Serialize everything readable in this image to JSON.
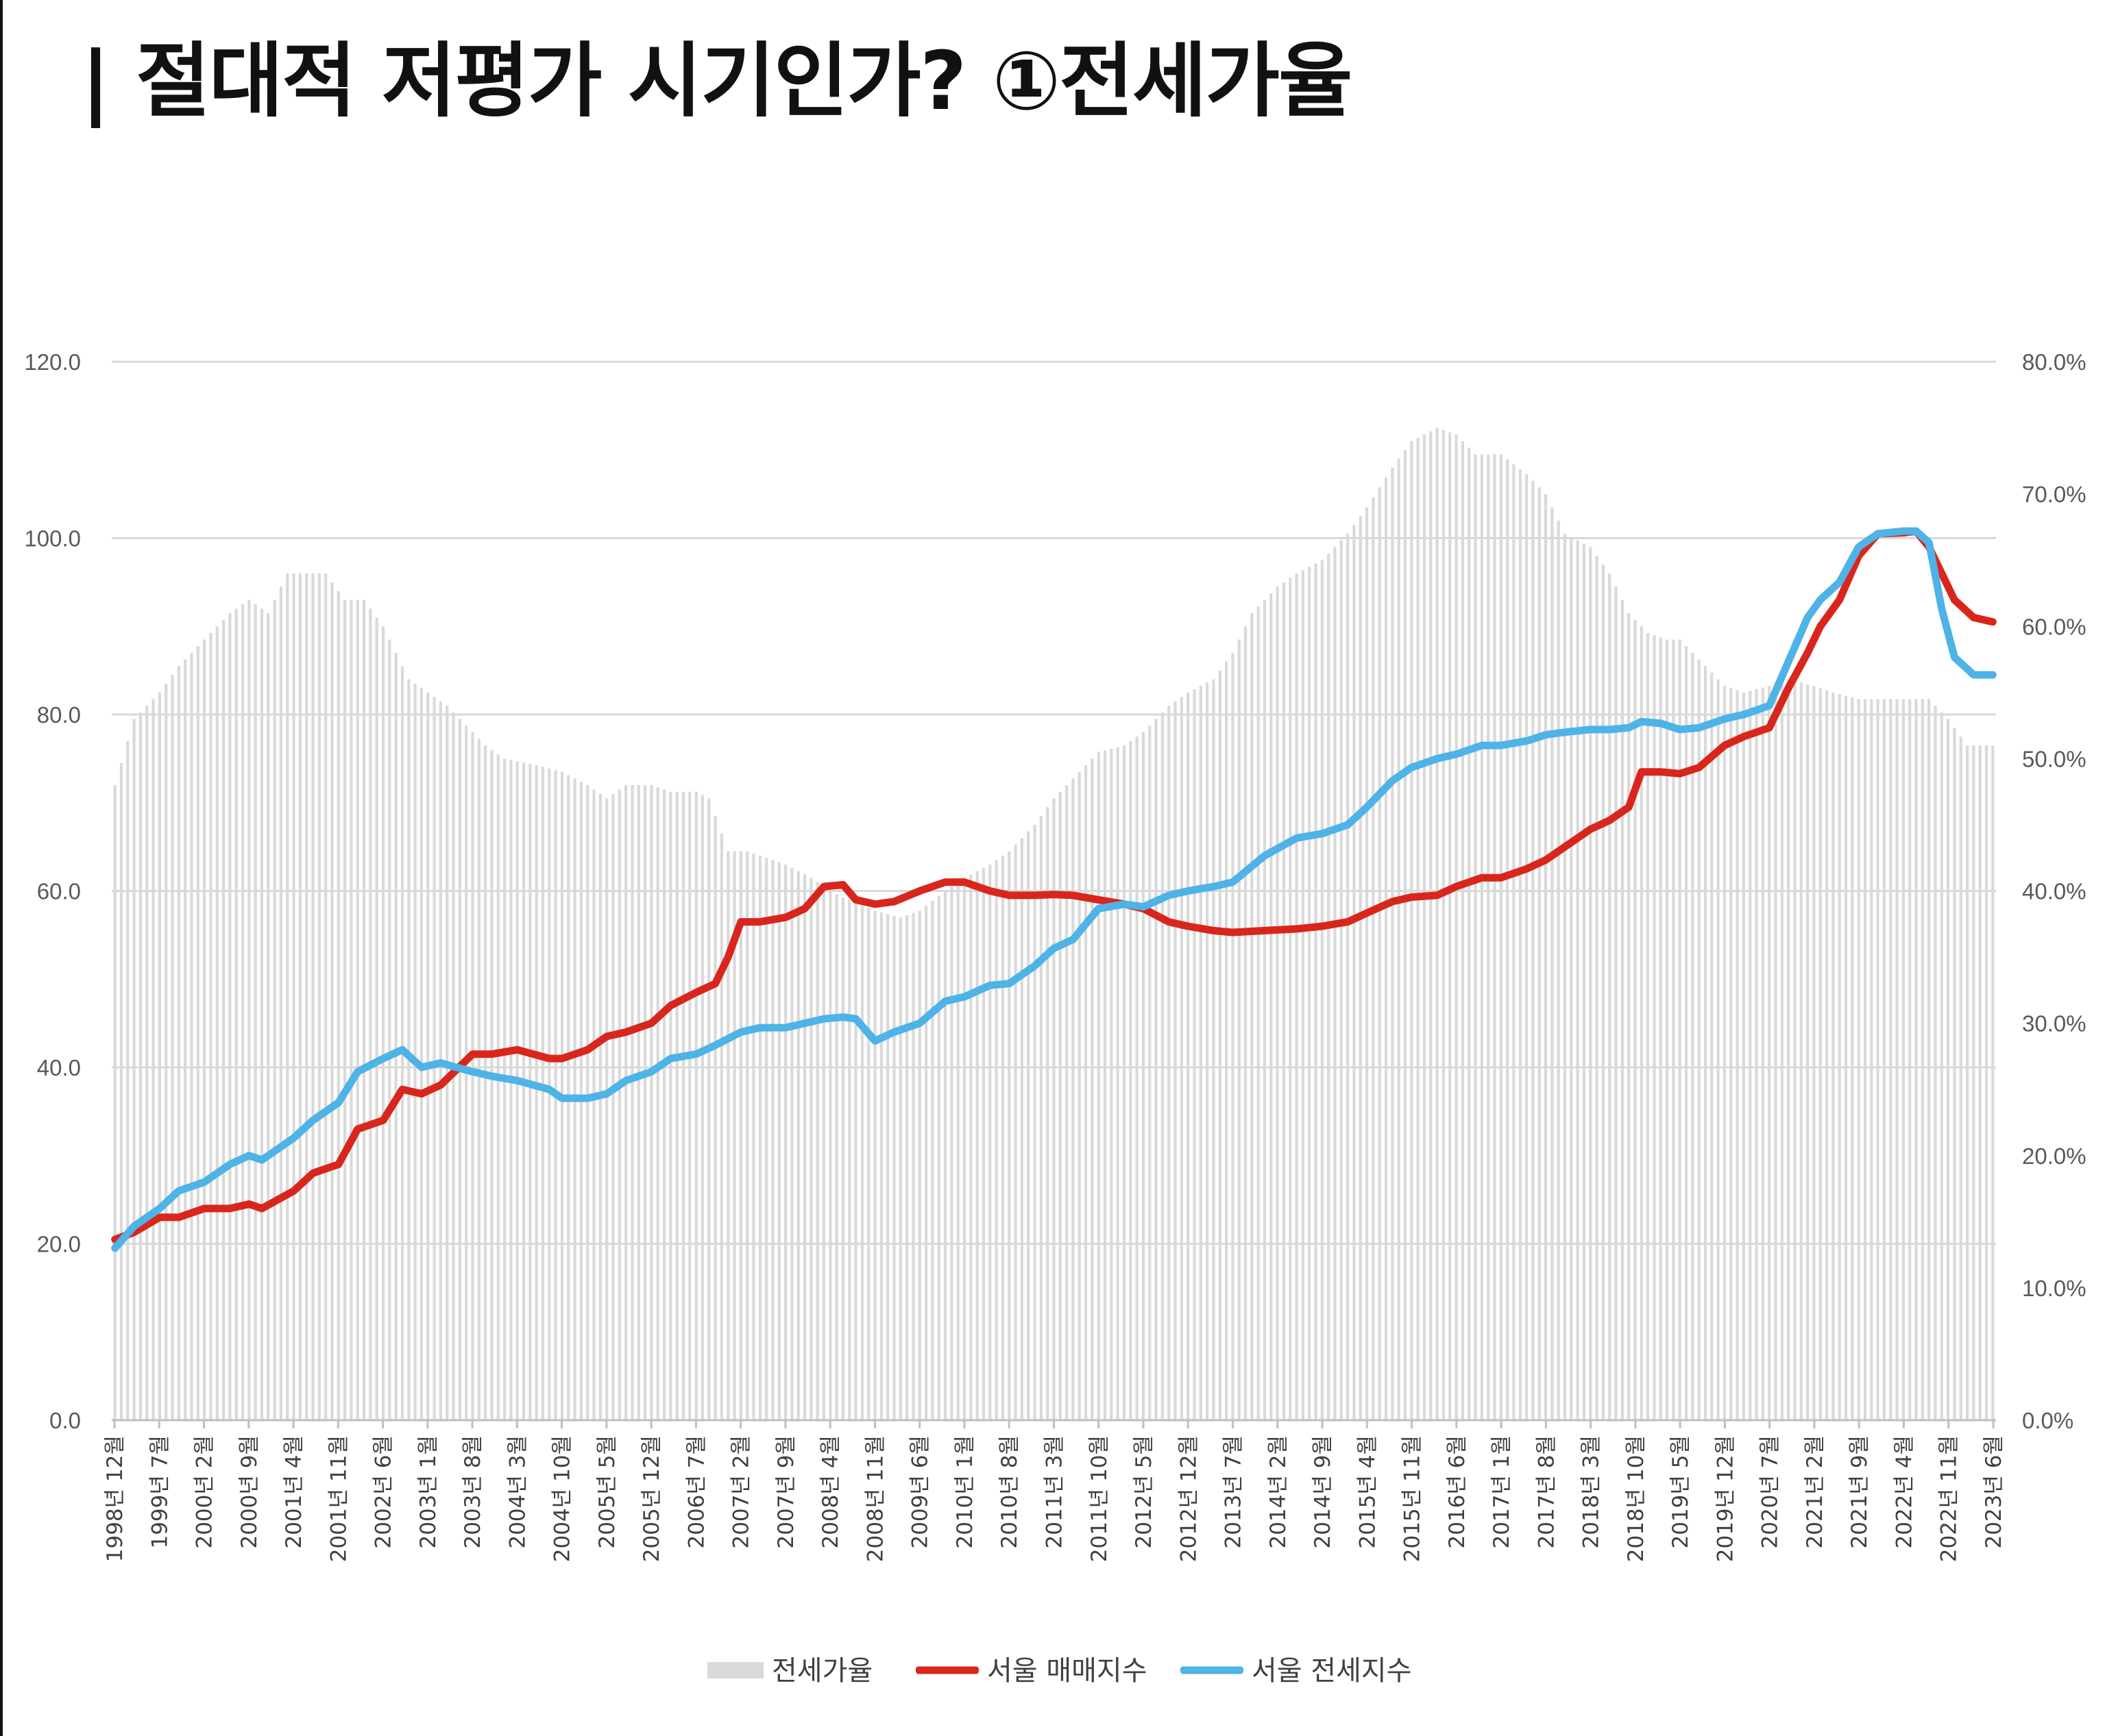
{
  "title": "| 절대적 저평가 시기인가? ①전세가율",
  "chart_data": {
    "type": "bar+line",
    "title": "",
    "y_left": {
      "lim": [
        0,
        120
      ],
      "ticks": [
        "0.0",
        "20.0",
        "40.0",
        "60.0",
        "80.0",
        "100.0",
        "120.0"
      ]
    },
    "y_right": {
      "lim": [
        0,
        80
      ],
      "ticks": [
        "0.0%",
        "10.0%",
        "20.0%",
        "30.0%",
        "40.0%",
        "50.0%",
        "60.0%",
        "70.0%",
        "80.0%"
      ]
    },
    "x_start": "1998-12",
    "x_end": "2023-06",
    "x_ticks": [
      "1998년 12월",
      "1999년 7월",
      "2000년 2월",
      "2000년 9월",
      "2001년 4월",
      "2001년 11월",
      "2002년 6월",
      "2003년 1월",
      "2003년 8월",
      "2004년 3월",
      "2004년 10월",
      "2005년 5월",
      "2005년 12월",
      "2006년 7월",
      "2007년 2월",
      "2007년 9월",
      "2008년 4월",
      "2008년 11월",
      "2009년 6월",
      "2010년 1월",
      "2010년 8월",
      "2011년 3월",
      "2011년 10월",
      "2012년 5월",
      "2012년 12월",
      "2013년 7월",
      "2014년 2월",
      "2014년 9월",
      "2015년 4월",
      "2015년 11월",
      "2016년 6월",
      "2017년 1월",
      "2017년 8월",
      "2018년 3월",
      "2018년 10월",
      "2019년 5월",
      "2019년 12월",
      "2020년 7월",
      "2021년 2월",
      "2021년 9월",
      "2022년 4월",
      "2022년 11월",
      "2023년 6월"
    ],
    "series": [
      {
        "name": "전세가율",
        "type": "bar",
        "axis": "right",
        "color": "#d9d9d9",
        "points": [
          [
            "1998-12",
            48
          ],
          [
            "1999-03",
            53
          ],
          [
            "1999-07",
            55
          ],
          [
            "1999-10",
            57
          ],
          [
            "2000-02",
            59
          ],
          [
            "2000-06",
            61
          ],
          [
            "2000-09",
            62
          ],
          [
            "2000-12",
            61
          ],
          [
            "2001-03",
            64
          ],
          [
            "2001-06",
            64
          ],
          [
            "2001-09",
            64
          ],
          [
            "2001-12",
            62
          ],
          [
            "2002-03",
            62
          ],
          [
            "2002-06",
            60
          ],
          [
            "2002-08",
            58
          ],
          [
            "2002-10",
            56
          ],
          [
            "2003-01",
            55
          ],
          [
            "2003-04",
            54
          ],
          [
            "2003-08",
            52
          ],
          [
            "2003-10",
            51
          ],
          [
            "2004-01",
            50
          ],
          [
            "2004-06",
            49.5
          ],
          [
            "2004-10",
            49
          ],
          [
            "2005-02",
            48
          ],
          [
            "2005-05",
            47
          ],
          [
            "2005-08",
            48
          ],
          [
            "2005-12",
            48
          ],
          [
            "2006-03",
            47.5
          ],
          [
            "2006-07",
            47.5
          ],
          [
            "2006-09",
            47
          ],
          [
            "2006-12",
            43
          ],
          [
            "2007-03",
            43
          ],
          [
            "2007-09",
            42
          ],
          [
            "2008-01",
            41
          ],
          [
            "2008-04",
            40
          ],
          [
            "2008-06",
            39.5
          ],
          [
            "2008-11",
            38.5
          ],
          [
            "2009-03",
            38
          ],
          [
            "2009-06",
            38.5
          ],
          [
            "2009-10",
            40
          ],
          [
            "2010-01",
            41
          ],
          [
            "2010-05",
            42
          ],
          [
            "2010-08",
            43
          ],
          [
            "2010-12",
            45
          ],
          [
            "2011-03",
            47
          ],
          [
            "2011-07",
            49
          ],
          [
            "2011-10",
            50.5
          ],
          [
            "2012-02",
            51
          ],
          [
            "2012-05",
            52
          ],
          [
            "2012-09",
            54
          ],
          [
            "2012-12",
            55
          ],
          [
            "2013-04",
            56
          ],
          [
            "2013-07",
            58
          ],
          [
            "2013-10",
            61
          ],
          [
            "2014-02",
            63
          ],
          [
            "2014-05",
            64
          ],
          [
            "2014-09",
            65
          ],
          [
            "2015-01",
            67
          ],
          [
            "2015-04",
            69
          ],
          [
            "2015-08",
            72
          ],
          [
            "2015-11",
            74
          ],
          [
            "2016-03",
            75
          ],
          [
            "2016-06",
            74.5
          ],
          [
            "2016-09",
            73
          ],
          [
            "2017-01",
            73
          ],
          [
            "2017-05",
            71.5
          ],
          [
            "2017-08",
            70
          ],
          [
            "2017-11",
            67
          ],
          [
            "2018-03",
            66
          ],
          [
            "2018-06",
            64
          ],
          [
            "2018-09",
            61
          ],
          [
            "2018-12",
            59.5
          ],
          [
            "2019-03",
            59
          ],
          [
            "2019-05",
            59
          ],
          [
            "2019-09",
            57
          ],
          [
            "2019-12",
            55.5
          ],
          [
            "2020-03",
            55
          ],
          [
            "2020-07",
            55.5
          ],
          [
            "2020-10",
            56
          ],
          [
            "2021-02",
            55.5
          ],
          [
            "2021-05",
            55
          ],
          [
            "2021-09",
            54.5
          ],
          [
            "2021-12",
            54.5
          ],
          [
            "2022-04",
            54.5
          ],
          [
            "2022-08",
            54.5
          ],
          [
            "2022-11",
            53
          ],
          [
            "2023-02",
            51
          ],
          [
            "2023-06",
            51
          ]
        ]
      },
      {
        "name": "서울 매매지수",
        "type": "line",
        "axis": "left",
        "color": "#d9261c",
        "points": [
          [
            "1998-12",
            20.5
          ],
          [
            "1999-03",
            21.3
          ],
          [
            "1999-07",
            23
          ],
          [
            "1999-10",
            23
          ],
          [
            "2000-02",
            24
          ],
          [
            "2000-06",
            24
          ],
          [
            "2000-09",
            24.5
          ],
          [
            "2000-11",
            24
          ],
          [
            "2001-04",
            26
          ],
          [
            "2001-07",
            28
          ],
          [
            "2001-11",
            29
          ],
          [
            "2002-02",
            33
          ],
          [
            "2002-06",
            34
          ],
          [
            "2002-09",
            37.5
          ],
          [
            "2002-12",
            37
          ],
          [
            "2003-03",
            38
          ],
          [
            "2003-08",
            41.5
          ],
          [
            "2003-11",
            41.5
          ],
          [
            "2004-03",
            42
          ],
          [
            "2004-08",
            41
          ],
          [
            "2004-10",
            41
          ],
          [
            "2005-02",
            42
          ],
          [
            "2005-05",
            43.5
          ],
          [
            "2005-08",
            44
          ],
          [
            "2005-12",
            45
          ],
          [
            "2006-03",
            47
          ],
          [
            "2006-07",
            48.5
          ],
          [
            "2006-10",
            49.5
          ],
          [
            "2006-12",
            52.5
          ],
          [
            "2007-02",
            56.5
          ],
          [
            "2007-05",
            56.5
          ],
          [
            "2007-09",
            57
          ],
          [
            "2007-12",
            58
          ],
          [
            "2008-03",
            60.5
          ],
          [
            "2008-06",
            60.7
          ],
          [
            "2008-08",
            59
          ],
          [
            "2008-11",
            58.5
          ],
          [
            "2009-02",
            58.8
          ],
          [
            "2009-06",
            60
          ],
          [
            "2009-10",
            61
          ],
          [
            "2010-01",
            61
          ],
          [
            "2010-05",
            60
          ],
          [
            "2010-08",
            59.5
          ],
          [
            "2010-12",
            59.5
          ],
          [
            "2011-03",
            59.6
          ],
          [
            "2011-06",
            59.5
          ],
          [
            "2011-10",
            59
          ],
          [
            "2012-02",
            58.5
          ],
          [
            "2012-05",
            58
          ],
          [
            "2012-09",
            56.5
          ],
          [
            "2012-12",
            56
          ],
          [
            "2013-04",
            55.5
          ],
          [
            "2013-07",
            55.3
          ],
          [
            "2013-12",
            55.5
          ],
          [
            "2014-05",
            55.7
          ],
          [
            "2014-09",
            56
          ],
          [
            "2015-01",
            56.5
          ],
          [
            "2015-04",
            57.5
          ],
          [
            "2015-08",
            58.8
          ],
          [
            "2015-11",
            59.3
          ],
          [
            "2016-03",
            59.5
          ],
          [
            "2016-06",
            60.5
          ],
          [
            "2016-10",
            61.5
          ],
          [
            "2017-01",
            61.5
          ],
          [
            "2017-05",
            62.5
          ],
          [
            "2017-08",
            63.5
          ],
          [
            "2017-11",
            65
          ],
          [
            "2018-03",
            67
          ],
          [
            "2018-06",
            68
          ],
          [
            "2018-09",
            69.5
          ],
          [
            "2018-11",
            73.5
          ],
          [
            "2019-02",
            73.5
          ],
          [
            "2019-05",
            73.3
          ],
          [
            "2019-08",
            74
          ],
          [
            "2019-12",
            76.5
          ],
          [
            "2020-03",
            77.5
          ],
          [
            "2020-07",
            78.5
          ],
          [
            "2020-10",
            83
          ],
          [
            "2021-01",
            87
          ],
          [
            "2021-03",
            90
          ],
          [
            "2021-06",
            93
          ],
          [
            "2021-09",
            98
          ],
          [
            "2021-12",
            100.5
          ],
          [
            "2022-04",
            100.6
          ],
          [
            "2022-06",
            100.8
          ],
          [
            "2022-08",
            99
          ],
          [
            "2022-10",
            96
          ],
          [
            "2022-12",
            93
          ],
          [
            "2023-03",
            91
          ],
          [
            "2023-06",
            90.5
          ]
        ]
      },
      {
        "name": "서울 전세지수",
        "type": "line",
        "axis": "left",
        "color": "#4eb3e6",
        "points": [
          [
            "1998-12",
            19.5
          ],
          [
            "1999-03",
            22
          ],
          [
            "1999-07",
            24
          ],
          [
            "1999-10",
            26
          ],
          [
            "2000-02",
            27
          ],
          [
            "2000-06",
            29
          ],
          [
            "2000-09",
            30
          ],
          [
            "2000-11",
            29.5
          ],
          [
            "2001-04",
            32
          ],
          [
            "2001-07",
            34
          ],
          [
            "2001-11",
            36
          ],
          [
            "2002-02",
            39.5
          ],
          [
            "2002-06",
            41
          ],
          [
            "2002-09",
            42
          ],
          [
            "2002-12",
            40
          ],
          [
            "2003-03",
            40.5
          ],
          [
            "2003-08",
            39.5
          ],
          [
            "2003-11",
            39
          ],
          [
            "2004-03",
            38.5
          ],
          [
            "2004-08",
            37.5
          ],
          [
            "2004-10",
            36.5
          ],
          [
            "2005-02",
            36.5
          ],
          [
            "2005-05",
            37
          ],
          [
            "2005-08",
            38.5
          ],
          [
            "2005-12",
            39.5
          ],
          [
            "2006-03",
            41
          ],
          [
            "2006-07",
            41.5
          ],
          [
            "2006-10",
            42.5
          ],
          [
            "2007-02",
            44
          ],
          [
            "2007-05",
            44.5
          ],
          [
            "2007-09",
            44.5
          ],
          [
            "2007-12",
            45
          ],
          [
            "2008-03",
            45.5
          ],
          [
            "2008-06",
            45.7
          ],
          [
            "2008-08",
            45.5
          ],
          [
            "2008-11",
            43
          ],
          [
            "2009-02",
            44
          ],
          [
            "2009-06",
            45
          ],
          [
            "2009-10",
            47.5
          ],
          [
            "2010-01",
            48
          ],
          [
            "2010-05",
            49.3
          ],
          [
            "2010-08",
            49.5
          ],
          [
            "2010-12",
            51.5
          ],
          [
            "2011-03",
            53.5
          ],
          [
            "2011-06",
            54.5
          ],
          [
            "2011-10",
            58
          ],
          [
            "2012-02",
            58.5
          ],
          [
            "2012-05",
            58.2
          ],
          [
            "2012-09",
            59.5
          ],
          [
            "2012-12",
            60
          ],
          [
            "2013-04",
            60.5
          ],
          [
            "2013-07",
            61
          ],
          [
            "2013-12",
            64
          ],
          [
            "2014-05",
            66
          ],
          [
            "2014-09",
            66.5
          ],
          [
            "2015-01",
            67.5
          ],
          [
            "2015-04",
            69.5
          ],
          [
            "2015-08",
            72.5
          ],
          [
            "2015-11",
            74
          ],
          [
            "2016-03",
            75
          ],
          [
            "2016-06",
            75.5
          ],
          [
            "2016-10",
            76.5
          ],
          [
            "2017-01",
            76.5
          ],
          [
            "2017-05",
            77
          ],
          [
            "2017-08",
            77.7
          ],
          [
            "2017-11",
            78
          ],
          [
            "2018-03",
            78.3
          ],
          [
            "2018-06",
            78.3
          ],
          [
            "2018-09",
            78.5
          ],
          [
            "2018-11",
            79.2
          ],
          [
            "2019-02",
            79
          ],
          [
            "2019-05",
            78.3
          ],
          [
            "2019-08",
            78.5
          ],
          [
            "2019-12",
            79.5
          ],
          [
            "2020-03",
            80
          ],
          [
            "2020-07",
            81
          ],
          [
            "2020-10",
            86
          ],
          [
            "2021-01",
            91
          ],
          [
            "2021-03",
            93
          ],
          [
            "2021-06",
            95
          ],
          [
            "2021-09",
            99
          ],
          [
            "2021-12",
            100.5
          ],
          [
            "2022-04",
            100.8
          ],
          [
            "2022-06",
            100.8
          ],
          [
            "2022-08",
            99.5
          ],
          [
            "2022-10",
            92
          ],
          [
            "2022-12",
            86.5
          ],
          [
            "2023-03",
            84.5
          ],
          [
            "2023-06",
            84.5
          ]
        ]
      }
    ],
    "legend": {
      "position": "bottom",
      "items": [
        "전세가율",
        "서울 매매지수",
        "서울 전세지수"
      ]
    }
  }
}
